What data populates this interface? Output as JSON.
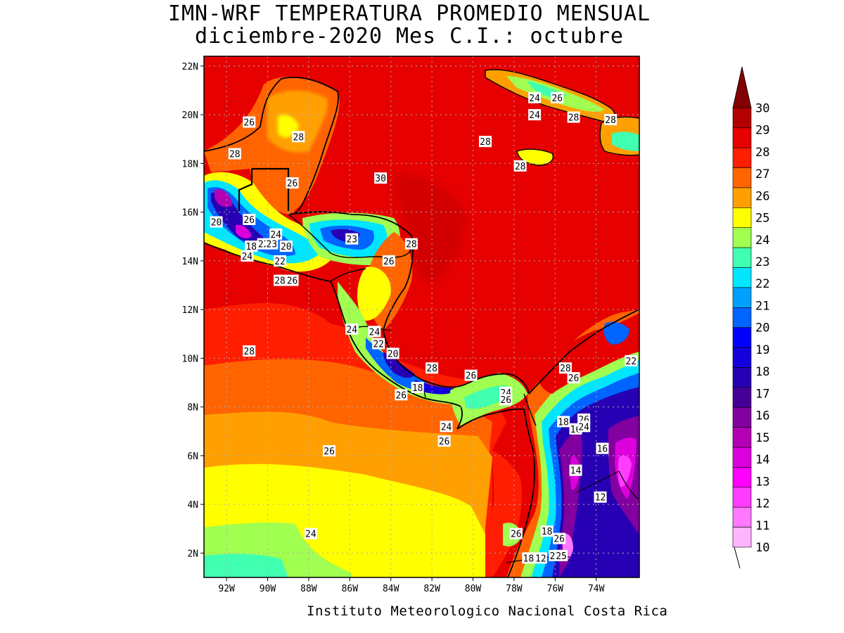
{
  "title_line1": "IMN-WRF  TEMPERATURA PROMEDIO MENSUAL",
  "title_line2": "diciembre-2020 Mes C.I.: octubre",
  "credit": "Instituto Meteorologico Nacional Costa Rica",
  "map": {
    "variable": "temperatura promedio mensual (°C)",
    "lon_range": [
      -93.1,
      -71.9
    ],
    "lat_range": [
      1.0,
      22.4
    ],
    "lat_ticks": [
      "22N",
      "20N",
      "18N",
      "16N",
      "14N",
      "12N",
      "10N",
      "8N",
      "6N",
      "4N",
      "2N"
    ],
    "lon_ticks": [
      "92W",
      "90W",
      "88W",
      "86W",
      "84W",
      "82W",
      "80W",
      "78W",
      "76W",
      "74W"
    ],
    "gridlines": "dotted",
    "contour_labels": [
      {
        "text": "26",
        "lon": -90.9,
        "lat": 19.7
      },
      {
        "text": "28",
        "lon": -91.6,
        "lat": 18.4
      },
      {
        "text": "28",
        "lon": -88.5,
        "lat": 19.1
      },
      {
        "text": "26",
        "lon": -88.8,
        "lat": 17.2
      },
      {
        "text": "30",
        "lon": -84.5,
        "lat": 17.4
      },
      {
        "text": "28",
        "lon": -79.4,
        "lat": 18.9
      },
      {
        "text": "24",
        "lon": -77.0,
        "lat": 20.7
      },
      {
        "text": "26",
        "lon": -75.9,
        "lat": 20.7
      },
      {
        "text": "24",
        "lon": -77.0,
        "lat": 20.0
      },
      {
        "text": "28",
        "lon": -75.1,
        "lat": 19.9
      },
      {
        "text": "28",
        "lon": -73.3,
        "lat": 19.8
      },
      {
        "text": "28",
        "lon": -77.7,
        "lat": 17.9
      },
      {
        "text": "20",
        "lon": -92.5,
        "lat": 15.6
      },
      {
        "text": "26",
        "lon": -90.9,
        "lat": 15.7
      },
      {
        "text": "24",
        "lon": -89.6,
        "lat": 15.1
      },
      {
        "text": "18",
        "lon": -90.8,
        "lat": 14.6
      },
      {
        "text": "22",
        "lon": -90.2,
        "lat": 14.7
      },
      {
        "text": "23",
        "lon": -89.8,
        "lat": 14.7
      },
      {
        "text": "20",
        "lon": -89.1,
        "lat": 14.6
      },
      {
        "text": "24",
        "lon": -91.0,
        "lat": 14.2
      },
      {
        "text": "22",
        "lon": -89.4,
        "lat": 14.0
      },
      {
        "text": "23",
        "lon": -85.9,
        "lat": 14.9
      },
      {
        "text": "28",
        "lon": -83.0,
        "lat": 14.7
      },
      {
        "text": "26",
        "lon": -84.1,
        "lat": 14.0
      },
      {
        "text": "28",
        "lon": -89.4,
        "lat": 13.2
      },
      {
        "text": "26",
        "lon": -88.8,
        "lat": 13.2
      },
      {
        "text": "24",
        "lon": -85.9,
        "lat": 11.2
      },
      {
        "text": "24",
        "lon": -84.8,
        "lat": 11.1
      },
      {
        "text": "22",
        "lon": -84.6,
        "lat": 10.6
      },
      {
        "text": "20",
        "lon": -83.9,
        "lat": 10.2
      },
      {
        "text": "28",
        "lon": -90.9,
        "lat": 10.3
      },
      {
        "text": "28",
        "lon": -82.0,
        "lat": 9.6
      },
      {
        "text": "18",
        "lon": -82.7,
        "lat": 8.8
      },
      {
        "text": "26",
        "lon": -83.5,
        "lat": 8.5
      },
      {
        "text": "26",
        "lon": -80.1,
        "lat": 9.3
      },
      {
        "text": "24",
        "lon": -78.4,
        "lat": 8.6
      },
      {
        "text": "26",
        "lon": -78.4,
        "lat": 8.3
      },
      {
        "text": "28",
        "lon": -75.5,
        "lat": 9.6
      },
      {
        "text": "26",
        "lon": -75.1,
        "lat": 9.2
      },
      {
        "text": "22",
        "lon": -72.3,
        "lat": 9.9
      },
      {
        "text": "24",
        "lon": -81.3,
        "lat": 7.2
      },
      {
        "text": "26",
        "lon": -81.4,
        "lat": 6.6
      },
      {
        "text": "18",
        "lon": -75.6,
        "lat": 7.4
      },
      {
        "text": "16",
        "lon": -75.0,
        "lat": 7.1
      },
      {
        "text": "26",
        "lon": -74.6,
        "lat": 7.5
      },
      {
        "text": "24",
        "lon": -74.6,
        "lat": 7.2
      },
      {
        "text": "26",
        "lon": -87.0,
        "lat": 6.2
      },
      {
        "text": "16",
        "lon": -73.7,
        "lat": 6.3
      },
      {
        "text": "14",
        "lon": -75.0,
        "lat": 5.4
      },
      {
        "text": "12",
        "lon": -73.8,
        "lat": 4.3
      },
      {
        "text": "24",
        "lon": -87.9,
        "lat": 2.8
      },
      {
        "text": "26",
        "lon": -77.9,
        "lat": 2.8
      },
      {
        "text": "18",
        "lon": -76.4,
        "lat": 2.9
      },
      {
        "text": "26",
        "lon": -75.8,
        "lat": 2.6
      },
      {
        "text": "18",
        "lon": -77.3,
        "lat": 1.8
      },
      {
        "text": "12",
        "lon": -76.7,
        "lat": 1.8
      },
      {
        "text": "23",
        "lon": -76.0,
        "lat": 1.9
      },
      {
        "text": "25",
        "lon": -75.7,
        "lat": 1.9
      }
    ]
  },
  "colorbar": {
    "levels": [
      10,
      11,
      12,
      13,
      14,
      15,
      16,
      17,
      18,
      19,
      20,
      21,
      22,
      23,
      24,
      25,
      26,
      27,
      28,
      29,
      30
    ],
    "labels": [
      "10",
      "11",
      "12",
      "13",
      "14",
      "15",
      "16",
      "17",
      "18",
      "19",
      "20",
      "21",
      "22",
      "23",
      "24",
      "25",
      "26",
      "27",
      "28",
      "29",
      "30"
    ],
    "colors": [
      "#ffb4ff",
      "#ff78ff",
      "#ff3cff",
      "#ff00ff",
      "#dc00dc",
      "#b400b4",
      "#8200a0",
      "#460096",
      "#2800b4",
      "#1400dc",
      "#0000ff",
      "#0064ff",
      "#00a0ff",
      "#00e6ff",
      "#40ffb0",
      "#a0ff50",
      "#ffff00",
      "#ffa000",
      "#ff6400",
      "#ff1e00",
      "#e60000",
      "#b40000",
      "#820000"
    ]
  }
}
